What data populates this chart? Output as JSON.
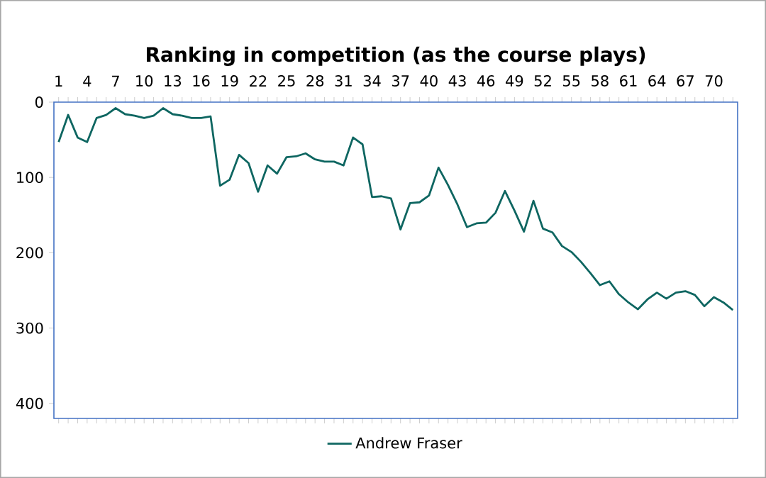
{
  "chart_data": {
    "type": "line",
    "title": "Ranking in competition (as the course plays)",
    "categories": [
      "1",
      null,
      null,
      "4",
      null,
      null,
      "7",
      null,
      null,
      "10",
      null,
      null,
      "13",
      null,
      null,
      "16",
      null,
      null,
      "19",
      null,
      null,
      "22",
      null,
      null,
      "25",
      null,
      null,
      "28",
      null,
      null,
      "31",
      null,
      null,
      "34",
      null,
      null,
      "37",
      null,
      null,
      "40",
      null,
      null,
      "43",
      null,
      null,
      "46",
      null,
      null,
      "49",
      null,
      null,
      "52",
      null,
      null,
      "55",
      null,
      null,
      "58",
      null,
      null,
      "61",
      null,
      null,
      "64",
      null,
      null,
      "67",
      null,
      null,
      "70",
      null,
      null
    ],
    "series": [
      {
        "name": "Andrew Fraser",
        "color": "#0e6661",
        "values": [
          53,
          17,
          47,
          53,
          21,
          17,
          8,
          16,
          18,
          21,
          18,
          8,
          16,
          18,
          21,
          21,
          19,
          111,
          103,
          70,
          81,
          119,
          84,
          95,
          73,
          72,
          68,
          76,
          79,
          79,
          84,
          47,
          56,
          126,
          125,
          128,
          169,
          134,
          133,
          124,
          87,
          110,
          136,
          166,
          161,
          160,
          147,
          118,
          144,
          172,
          131,
          168,
          173,
          191,
          199,
          212,
          227,
          243,
          238,
          255,
          266,
          275,
          262,
          253,
          261,
          253,
          251,
          256,
          271,
          259,
          266,
          276
        ]
      }
    ],
    "ylim": [
      420,
      0
    ],
    "yticks": [
      0,
      100,
      200,
      300,
      400
    ],
    "grid": false,
    "legend": "bottom"
  }
}
